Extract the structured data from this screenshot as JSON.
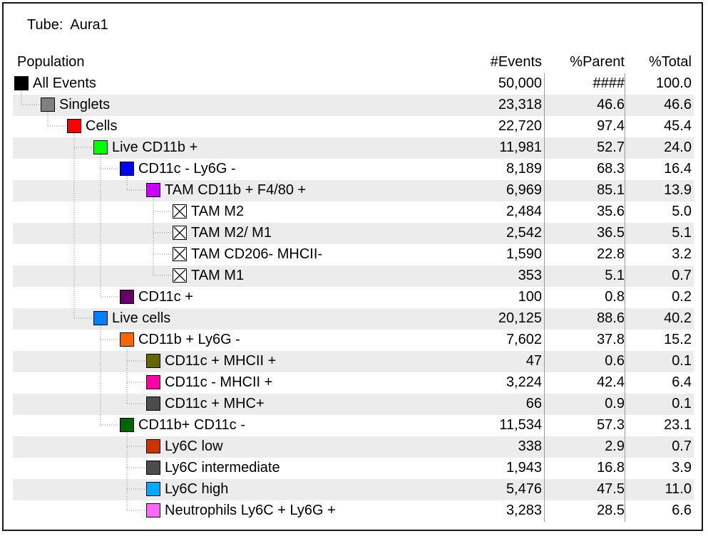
{
  "tube": {
    "label": "Tube:",
    "name": "Aura1"
  },
  "headers": {
    "population": "Population",
    "events": "#Events",
    "parent": "%Parent",
    "total": "%Total"
  },
  "rows": [
    {
      "label": "All Events",
      "events": "50,000",
      "parent": "####",
      "total": "100.0",
      "color": "#000000",
      "depth": 0,
      "gate": false
    },
    {
      "label": "Singlets",
      "events": "23,318",
      "parent": "46.6",
      "total": "46.6",
      "color": "#808080",
      "depth": 1,
      "gate": false
    },
    {
      "label": "Cells",
      "events": "22,720",
      "parent": "97.4",
      "total": "45.4",
      "color": "#ff0000",
      "depth": 2,
      "gate": false
    },
    {
      "label": "Live CD11b +",
      "events": "11,981",
      "parent": "52.7",
      "total": "24.0",
      "color": "#00ff00",
      "depth": 3,
      "gate": false
    },
    {
      "label": "CD11c - Ly6G -",
      "events": "8,189",
      "parent": "68.3",
      "total": "16.4",
      "color": "#0000ff",
      "depth": 4,
      "gate": false
    },
    {
      "label": "TAM CD11b + F4/80 +",
      "events": "6,969",
      "parent": "85.1",
      "total": "13.9",
      "color": "#cc00ff",
      "depth": 5,
      "gate": false
    },
    {
      "label": "TAM M2",
      "events": "2,484",
      "parent": "35.6",
      "total": "5.0",
      "color": "#ffffff",
      "depth": 6,
      "gate": true
    },
    {
      "label": "TAM M2/ M1",
      "events": "2,542",
      "parent": "36.5",
      "total": "5.1",
      "color": "#ffffff",
      "depth": 6,
      "gate": true
    },
    {
      "label": "TAM CD206- MHCII-",
      "events": "1,590",
      "parent": "22.8",
      "total": "3.2",
      "color": "#ffffff",
      "depth": 6,
      "gate": true
    },
    {
      "label": "TAM M1",
      "events": "353",
      "parent": "5.1",
      "total": "0.7",
      "color": "#ffffff",
      "depth": 6,
      "gate": true
    },
    {
      "label": "CD11c +",
      "events": "100",
      "parent": "0.8",
      "total": "0.2",
      "color": "#660066",
      "depth": 4,
      "gate": false
    },
    {
      "label": "Live cells",
      "events": "20,125",
      "parent": "88.6",
      "total": "40.2",
      "color": "#0080ff",
      "depth": 3,
      "gate": false
    },
    {
      "label": "CD11b +  Ly6G -",
      "events": "7,602",
      "parent": "37.8",
      "total": "15.2",
      "color": "#ff6600",
      "depth": 4,
      "gate": false
    },
    {
      "label": "CD11c + MHCII +",
      "events": "47",
      "parent": "0.6",
      "total": "0.1",
      "color": "#666600",
      "depth": 5,
      "gate": false
    },
    {
      "label": "CD11c - MHCII +",
      "events": "3,224",
      "parent": "42.4",
      "total": "6.4",
      "color": "#ff00aa",
      "depth": 5,
      "gate": false
    },
    {
      "label": "CD11c + MHC+",
      "events": "66",
      "parent": "0.9",
      "total": "0.1",
      "color": "#4d4d4d",
      "depth": 5,
      "gate": false
    },
    {
      "label": "CD11b+ CD11c -",
      "events": "11,534",
      "parent": "57.3",
      "total": "23.1",
      "color": "#006600",
      "depth": 4,
      "gate": false
    },
    {
      "label": "Ly6C low",
      "events": "338",
      "parent": "2.9",
      "total": "0.7",
      "color": "#cc3300",
      "depth": 5,
      "gate": false
    },
    {
      "label": "Ly6C intermediate",
      "events": "1,943",
      "parent": "16.8",
      "total": "3.9",
      "color": "#4d4d4d",
      "depth": 5,
      "gate": false
    },
    {
      "label": "Ly6C high",
      "events": "5,476",
      "parent": "47.5",
      "total": "11.0",
      "color": "#00aaff",
      "depth": 5,
      "gate": false
    },
    {
      "label": "Neutrophils Ly6C + Ly6G +",
      "events": "3,283",
      "parent": "28.5",
      "total": "6.6",
      "color": "#ff66ff",
      "depth": 5,
      "gate": false
    }
  ]
}
